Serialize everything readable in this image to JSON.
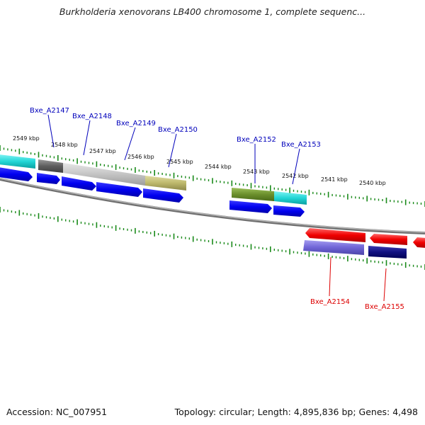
{
  "title": "Burkholderia xenovorans LB400 chromosome 1, complete sequenc...",
  "footer": {
    "accession": "Accession: NC_007951",
    "topology": "Topology: circular; Length: 4,895,836 bp; Genes: 4,498"
  },
  "colors": {
    "tick": "#1a8a1a",
    "backbone": "#888888",
    "cds": "#0000ee",
    "label_forward": "#0000bb",
    "label_reverse": "#dd0000"
  },
  "scale_labels": [
    "2549 kbp",
    "2548 kbp",
    "2547 kbp",
    "2546 kbp",
    "2545 kbp",
    "2544 kbp",
    "2543 kbp",
    "2542 kbp",
    "2541 kbp",
    "2540 kbp"
  ],
  "genes": [
    {
      "name": "Bxe_A2147",
      "strand": "forward",
      "color": "#0000bb"
    },
    {
      "name": "Bxe_A2148",
      "strand": "forward",
      "color": "#0000bb"
    },
    {
      "name": "Bxe_A2149",
      "strand": "forward",
      "color": "#0000bb"
    },
    {
      "name": "Bxe_A2150",
      "strand": "forward",
      "color": "#0000bb"
    },
    {
      "name": "Bxe_A2152",
      "strand": "forward",
      "color": "#0000bb"
    },
    {
      "name": "Bxe_A2153",
      "strand": "forward",
      "color": "#0000bb"
    },
    {
      "name": "Bxe_A2154",
      "strand": "reverse",
      "color": "#dd0000"
    },
    {
      "name": "Bxe_A2155",
      "strand": "reverse",
      "color": "#dd0000"
    }
  ]
}
